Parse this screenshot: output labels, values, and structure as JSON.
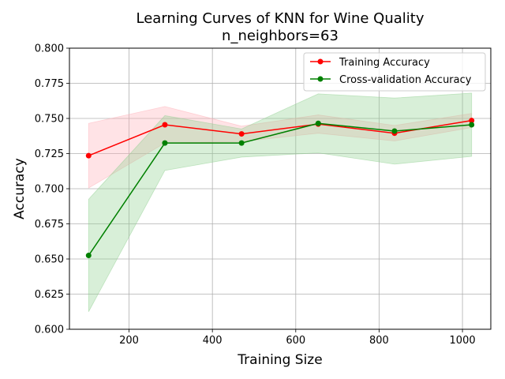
{
  "chart_data": {
    "type": "line",
    "title": "Learning Curves of KNN for Wine Quality",
    "subtitle": "n_neighbors=63",
    "xlabel": "Training Size",
    "ylabel": "Accuracy",
    "xlim": [
      57,
      1068
    ],
    "ylim": [
      0.6,
      0.8
    ],
    "xticks": [
      200,
      400,
      600,
      800,
      1000
    ],
    "yticks": [
      0.6,
      0.625,
      0.65,
      0.675,
      0.7,
      0.725,
      0.75,
      0.775,
      0.8
    ],
    "xtick_labels": [
      "200",
      "400",
      "600",
      "800",
      "1000"
    ],
    "ytick_labels": [
      "0.600",
      "0.625",
      "0.650",
      "0.675",
      "0.700",
      "0.725",
      "0.750",
      "0.775",
      "0.800"
    ],
    "grid": true,
    "legend_position": "top-right",
    "x": [
      103,
      286,
      470,
      654,
      837,
      1022
    ],
    "series": [
      {
        "name": "Training Accuracy",
        "color": "#ff0000",
        "band_color": "#ffb0b8",
        "values": [
          0.7235,
          0.7455,
          0.739,
          0.746,
          0.7395,
          0.7485
        ],
        "lower": [
          0.7005,
          0.7325,
          0.7335,
          0.7395,
          0.734,
          0.7435
        ],
        "upper": [
          0.7465,
          0.7585,
          0.7445,
          0.7525,
          0.745,
          0.7535
        ]
      },
      {
        "name": "Cross-validation Accuracy",
        "color": "#008000",
        "band_color": "#90d090",
        "values": [
          0.6525,
          0.7325,
          0.7325,
          0.7465,
          0.741,
          0.7455
        ],
        "lower": [
          0.6125,
          0.713,
          0.7225,
          0.7255,
          0.7175,
          0.723
        ],
        "upper": [
          0.6925,
          0.752,
          0.7425,
          0.7675,
          0.7645,
          0.768
        ]
      }
    ]
  }
}
